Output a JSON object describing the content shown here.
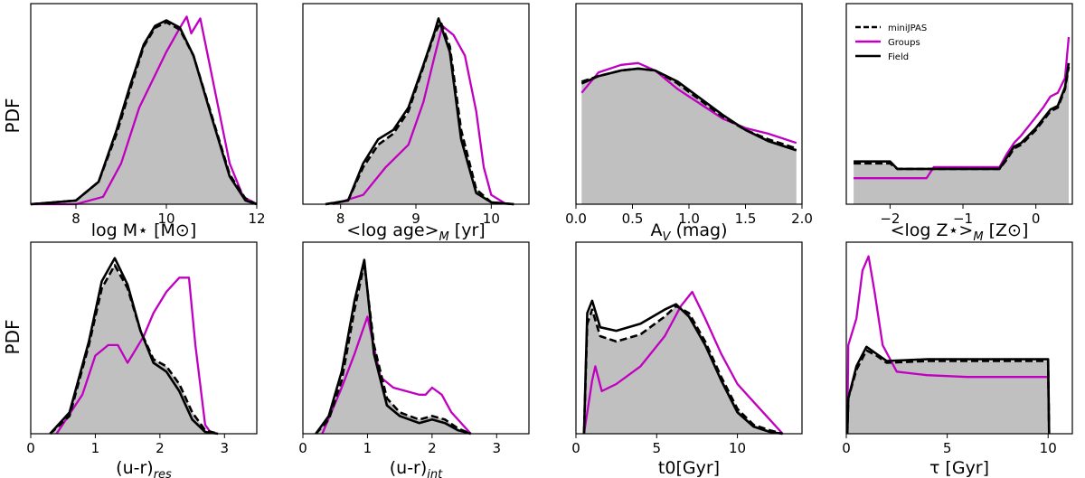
{
  "figure": {
    "ylabel_top": "PDF",
    "ylabel_bottom": "PDF"
  },
  "chart_data": [
    {
      "type": "area",
      "xlabel": "log M⋆ [M⊙]",
      "ylabel": "PDF",
      "xlim": [
        7,
        12
      ],
      "ylim": [
        0,
        1.08
      ],
      "xticks": [
        8,
        10,
        12
      ],
      "xtick_labels": [
        "8",
        "10",
        "12"
      ],
      "series": [
        {
          "name": "miniJPAS",
          "style": "dashed",
          "color": "#000000",
          "x": [
            7.0,
            8.0,
            8.5,
            8.9,
            9.2,
            9.5,
            9.75,
            10.0,
            10.3,
            10.6,
            11.0,
            11.4,
            11.75,
            12.0
          ],
          "y": [
            0.0,
            0.02,
            0.12,
            0.38,
            0.62,
            0.85,
            0.95,
            0.98,
            0.94,
            0.8,
            0.48,
            0.16,
            0.03,
            0.0
          ]
        },
        {
          "name": "Groups",
          "style": "solid",
          "color": "#c000c0",
          "x": [
            7.0,
            8.0,
            8.6,
            9.0,
            9.4,
            9.8,
            10.0,
            10.3,
            10.45,
            10.55,
            10.75,
            10.9,
            11.1,
            11.4,
            11.7,
            12.0
          ],
          "y": [
            0.0,
            0.0,
            0.04,
            0.22,
            0.52,
            0.72,
            0.82,
            0.95,
            1.01,
            0.92,
            1.0,
            0.82,
            0.58,
            0.22,
            0.04,
            0.0
          ]
        },
        {
          "name": "Field",
          "style": "solid",
          "color": "#000000",
          "x": [
            7.0,
            8.0,
            8.5,
            8.9,
            9.2,
            9.5,
            9.75,
            10.0,
            10.3,
            10.6,
            11.0,
            11.4,
            11.75,
            12.0
          ],
          "y": [
            0.0,
            0.02,
            0.12,
            0.4,
            0.64,
            0.86,
            0.96,
            0.99,
            0.95,
            0.8,
            0.47,
            0.15,
            0.02,
            0.0
          ]
        }
      ]
    },
    {
      "type": "area",
      "xlabel": "<log age>",
      "xlabel_sub": "M",
      "xlabel_tail": " [yr]",
      "ylabel": "PDF",
      "xlim": [
        7.5,
        10.5
      ],
      "ylim": [
        0,
        1.08
      ],
      "xticks": [
        8,
        9,
        10
      ],
      "xtick_labels": [
        "8",
        "9",
        "10"
      ],
      "series": [
        {
          "name": "miniJPAS",
          "style": "dashed",
          "color": "#000000",
          "x": [
            7.8,
            8.1,
            8.3,
            8.5,
            8.7,
            8.9,
            9.1,
            9.25,
            9.33,
            9.45,
            9.6,
            9.8,
            10.0,
            10.3
          ],
          "y": [
            0.0,
            0.02,
            0.2,
            0.32,
            0.38,
            0.5,
            0.74,
            0.92,
            0.98,
            0.85,
            0.4,
            0.08,
            0.01,
            0.0
          ]
        },
        {
          "name": "Groups",
          "style": "solid",
          "color": "#c000c0",
          "x": [
            7.9,
            8.3,
            8.6,
            8.9,
            9.1,
            9.25,
            9.35,
            9.5,
            9.65,
            9.8,
            9.9,
            10.0,
            10.2
          ],
          "y": [
            0.0,
            0.05,
            0.2,
            0.32,
            0.55,
            0.8,
            0.96,
            0.91,
            0.8,
            0.5,
            0.2,
            0.05,
            0.0
          ]
        },
        {
          "name": "Field",
          "style": "solid",
          "color": "#000000",
          "x": [
            7.8,
            8.1,
            8.3,
            8.5,
            8.7,
            8.9,
            9.1,
            9.25,
            9.3,
            9.45,
            9.6,
            9.8,
            10.0,
            10.3
          ],
          "y": [
            0.0,
            0.02,
            0.22,
            0.35,
            0.4,
            0.52,
            0.75,
            0.93,
            1.0,
            0.82,
            0.35,
            0.06,
            0.01,
            0.0
          ]
        }
      ]
    },
    {
      "type": "area",
      "xlabel": "A",
      "xlabel_sub": "V",
      "xlabel_tail": " (mag)",
      "ylabel": "PDF",
      "xlim": [
        0,
        2.0
      ],
      "ylim": [
        0,
        1.08
      ],
      "xticks": [
        0.0,
        0.5,
        1.0,
        1.5,
        2.0
      ],
      "xtick_labels": [
        "0.0",
        "0.5",
        "1.0",
        "1.5",
        "2.0"
      ],
      "series": [
        {
          "name": "miniJPAS",
          "style": "dashed",
          "color": "#000000",
          "x": [
            0.05,
            0.2,
            0.4,
            0.55,
            0.7,
            0.9,
            1.1,
            1.3,
            1.5,
            1.7,
            1.95
          ],
          "y": [
            0.66,
            0.69,
            0.72,
            0.73,
            0.72,
            0.65,
            0.56,
            0.47,
            0.4,
            0.35,
            0.3
          ]
        },
        {
          "name": "Groups",
          "style": "solid",
          "color": "#c000c0",
          "x": [
            0.05,
            0.2,
            0.4,
            0.55,
            0.7,
            0.9,
            1.1,
            1.3,
            1.5,
            1.7,
            1.95
          ],
          "y": [
            0.6,
            0.71,
            0.75,
            0.76,
            0.72,
            0.62,
            0.54,
            0.46,
            0.41,
            0.38,
            0.33
          ]
        },
        {
          "name": "Field",
          "style": "solid",
          "color": "#000000",
          "x": [
            0.05,
            0.2,
            0.4,
            0.55,
            0.7,
            0.9,
            1.1,
            1.3,
            1.5,
            1.7,
            1.95
          ],
          "y": [
            0.65,
            0.69,
            0.72,
            0.73,
            0.72,
            0.66,
            0.57,
            0.48,
            0.4,
            0.34,
            0.29
          ]
        }
      ]
    },
    {
      "type": "area",
      "xlabel": "<log Z⋆>",
      "xlabel_sub": "M",
      "xlabel_tail": " [Z⊙]",
      "ylabel": "PDF",
      "xlim": [
        -2.6,
        0.5
      ],
      "ylim": [
        0,
        1.08
      ],
      "xticks": [
        -2,
        -1,
        0
      ],
      "xtick_labels": [
        "−2",
        "−1",
        "0"
      ],
      "legend": {
        "position": "top-left",
        "entries": [
          "miniJPAS",
          "Groups",
          "Field"
        ]
      },
      "series": [
        {
          "name": "miniJPAS",
          "style": "dashed",
          "color": "#000000",
          "x": [
            -2.5,
            -2.0,
            -1.9,
            -0.5,
            -0.4,
            -0.3,
            -0.2,
            -0.1,
            0.0,
            0.1,
            0.2,
            0.3,
            0.4,
            0.45
          ],
          "y": [
            0.22,
            0.22,
            0.19,
            0.19,
            0.24,
            0.3,
            0.32,
            0.36,
            0.4,
            0.45,
            0.5,
            0.52,
            0.62,
            0.74
          ]
        },
        {
          "name": "Groups",
          "style": "solid",
          "color": "#c000c0",
          "x": [
            -2.5,
            -1.5,
            -1.4,
            -0.5,
            -0.4,
            -0.3,
            -0.2,
            -0.1,
            0.0,
            0.1,
            0.2,
            0.3,
            0.4,
            0.45
          ],
          "y": [
            0.14,
            0.14,
            0.2,
            0.2,
            0.27,
            0.33,
            0.37,
            0.42,
            0.47,
            0.52,
            0.58,
            0.6,
            0.68,
            0.9
          ]
        },
        {
          "name": "Field",
          "style": "solid",
          "color": "#000000",
          "x": [
            -2.5,
            -2.0,
            -1.9,
            -0.5,
            -0.4,
            -0.3,
            -0.2,
            -0.1,
            0.0,
            0.1,
            0.2,
            0.3,
            0.4,
            0.45
          ],
          "y": [
            0.23,
            0.23,
            0.19,
            0.19,
            0.25,
            0.31,
            0.33,
            0.37,
            0.41,
            0.46,
            0.51,
            0.53,
            0.63,
            0.76
          ]
        }
      ]
    },
    {
      "type": "area",
      "xlabel": "(u-r)",
      "xlabel_sub": "res",
      "xlabel_tail": "",
      "ylabel": "PDF",
      "xlim": [
        0,
        3.5
      ],
      "ylim": [
        0,
        1.08
      ],
      "xticks": [
        0,
        1,
        2,
        3
      ],
      "xtick_labels": [
        "0",
        "1",
        "2",
        "3"
      ],
      "series": [
        {
          "name": "miniJPAS",
          "style": "dashed",
          "color": "#000000",
          "x": [
            0.3,
            0.6,
            0.9,
            1.1,
            1.3,
            1.5,
            1.7,
            1.9,
            2.1,
            2.3,
            2.5,
            2.7,
            2.9
          ],
          "y": [
            0.0,
            0.1,
            0.5,
            0.82,
            0.95,
            0.82,
            0.58,
            0.42,
            0.38,
            0.28,
            0.12,
            0.02,
            0.0
          ]
        },
        {
          "name": "Groups",
          "style": "solid",
          "color": "#c000c0",
          "x": [
            0.4,
            0.8,
            1.0,
            1.2,
            1.35,
            1.5,
            1.6,
            1.75,
            1.9,
            2.1,
            2.3,
            2.45,
            2.55,
            2.7,
            2.8
          ],
          "y": [
            0.0,
            0.22,
            0.44,
            0.5,
            0.5,
            0.4,
            0.46,
            0.55,
            0.68,
            0.8,
            0.88,
            0.88,
            0.5,
            0.05,
            0.0
          ]
        },
        {
          "name": "Field",
          "style": "solid",
          "color": "#000000",
          "x": [
            0.3,
            0.6,
            0.9,
            1.1,
            1.3,
            1.5,
            1.7,
            1.9,
            2.1,
            2.3,
            2.5,
            2.7,
            2.9
          ],
          "y": [
            0.0,
            0.12,
            0.52,
            0.86,
            0.99,
            0.84,
            0.58,
            0.4,
            0.35,
            0.24,
            0.08,
            0.01,
            0.0
          ]
        }
      ]
    },
    {
      "type": "area",
      "xlabel": "(u-r)",
      "xlabel_sub": "int",
      "xlabel_tail": "",
      "ylabel": "PDF",
      "xlim": [
        0,
        3.5
      ],
      "ylim": [
        0,
        1.08
      ],
      "xticks": [
        0,
        1,
        2,
        3
      ],
      "xtick_labels": [
        "0",
        "1",
        "2",
        "3"
      ],
      "series": [
        {
          "name": "miniJPAS",
          "style": "dashed",
          "color": "#000000",
          "x": [
            0.2,
            0.4,
            0.6,
            0.8,
            0.95,
            1.1,
            1.3,
            1.5,
            1.8,
            2.0,
            2.2,
            2.4,
            2.6
          ],
          "y": [
            0.0,
            0.08,
            0.3,
            0.7,
            0.96,
            0.5,
            0.2,
            0.12,
            0.08,
            0.1,
            0.08,
            0.03,
            0.0
          ]
        },
        {
          "name": "Groups",
          "style": "solid",
          "color": "#c000c0",
          "x": [
            0.3,
            0.6,
            0.8,
            1.0,
            1.2,
            1.4,
            1.6,
            1.8,
            1.9,
            2.0,
            2.15,
            2.3,
            2.45,
            2.6
          ],
          "y": [
            0.0,
            0.26,
            0.45,
            0.66,
            0.32,
            0.26,
            0.24,
            0.22,
            0.22,
            0.26,
            0.22,
            0.12,
            0.06,
            0.0
          ]
        },
        {
          "name": "Field",
          "style": "solid",
          "color": "#000000",
          "x": [
            0.2,
            0.4,
            0.6,
            0.8,
            0.95,
            1.1,
            1.3,
            1.5,
            1.8,
            2.0,
            2.2,
            2.4,
            2.6
          ],
          "y": [
            0.0,
            0.1,
            0.35,
            0.75,
            0.98,
            0.45,
            0.16,
            0.1,
            0.06,
            0.08,
            0.06,
            0.02,
            0.0
          ]
        }
      ]
    },
    {
      "type": "area",
      "xlabel": "t0[Gyr]",
      "xlabel_sub": "",
      "xlabel_tail": "",
      "ylabel": "PDF",
      "xlim": [
        0,
        14
      ],
      "ylim": [
        0,
        1.08
      ],
      "xticks": [
        0,
        5,
        10
      ],
      "xtick_labels": [
        "0",
        "5",
        "10"
      ],
      "series": [
        {
          "name": "miniJPAS",
          "style": "dashed",
          "color": "#000000",
          "x": [
            0.5,
            0.7,
            1.0,
            1.5,
            2.5,
            4.0,
            5.5,
            6.2,
            7.0,
            8.0,
            9.0,
            10.0,
            11.0,
            12.0,
            12.8
          ],
          "y": [
            0.0,
            0.62,
            0.7,
            0.55,
            0.52,
            0.56,
            0.66,
            0.72,
            0.68,
            0.52,
            0.32,
            0.14,
            0.05,
            0.02,
            0.0
          ]
        },
        {
          "name": "Groups",
          "style": "solid",
          "color": "#c000c0",
          "x": [
            0.5,
            1.0,
            1.2,
            1.6,
            2.5,
            4.0,
            5.5,
            6.5,
            7.2,
            8.0,
            9.0,
            10.0,
            11.0,
            12.0,
            12.8
          ],
          "y": [
            0.0,
            0.3,
            0.38,
            0.24,
            0.28,
            0.38,
            0.55,
            0.72,
            0.8,
            0.65,
            0.45,
            0.28,
            0.18,
            0.08,
            0.0
          ]
        },
        {
          "name": "Field",
          "style": "solid",
          "color": "#000000",
          "x": [
            0.5,
            0.7,
            1.0,
            1.5,
            2.5,
            4.0,
            5.5,
            6.2,
            7.0,
            8.0,
            9.0,
            10.0,
            11.0,
            12.0,
            12.8
          ],
          "y": [
            0.0,
            0.68,
            0.75,
            0.6,
            0.58,
            0.62,
            0.7,
            0.73,
            0.66,
            0.5,
            0.3,
            0.12,
            0.04,
            0.01,
            0.0
          ]
        }
      ]
    },
    {
      "type": "area",
      "xlabel": "τ [Gyr]",
      "xlabel_sub": "",
      "xlabel_tail": "",
      "ylabel": "PDF",
      "xlim": [
        0,
        11.2
      ],
      "ylim": [
        0,
        1.08
      ],
      "xticks": [
        0,
        5,
        10
      ],
      "xtick_labels": [
        "0",
        "5",
        "10"
      ],
      "series": [
        {
          "name": "miniJPAS",
          "style": "dashed",
          "color": "#000000",
          "x": [
            0.05,
            0.1,
            0.5,
            1.0,
            1.5,
            2.0,
            4.0,
            6.0,
            8.0,
            10.0,
            10.05
          ],
          "y": [
            0.0,
            0.2,
            0.36,
            0.47,
            0.44,
            0.4,
            0.41,
            0.41,
            0.41,
            0.41,
            0.0
          ]
        },
        {
          "name": "Groups",
          "style": "solid",
          "color": "#c000c0",
          "x": [
            0.05,
            0.1,
            0.5,
            0.8,
            1.1,
            1.4,
            1.8,
            2.5,
            4.0,
            6.0,
            8.0,
            10.0,
            10.05
          ],
          "y": [
            0.0,
            0.5,
            0.65,
            0.92,
            1.0,
            0.8,
            0.5,
            0.35,
            0.33,
            0.32,
            0.32,
            0.32,
            0.0
          ]
        },
        {
          "name": "Field",
          "style": "solid",
          "color": "#000000",
          "x": [
            0.05,
            0.1,
            0.5,
            1.0,
            1.5,
            2.0,
            4.0,
            6.0,
            8.0,
            10.0,
            10.05
          ],
          "y": [
            0.0,
            0.2,
            0.38,
            0.49,
            0.45,
            0.41,
            0.42,
            0.42,
            0.42,
            0.42,
            0.0
          ]
        }
      ]
    }
  ]
}
